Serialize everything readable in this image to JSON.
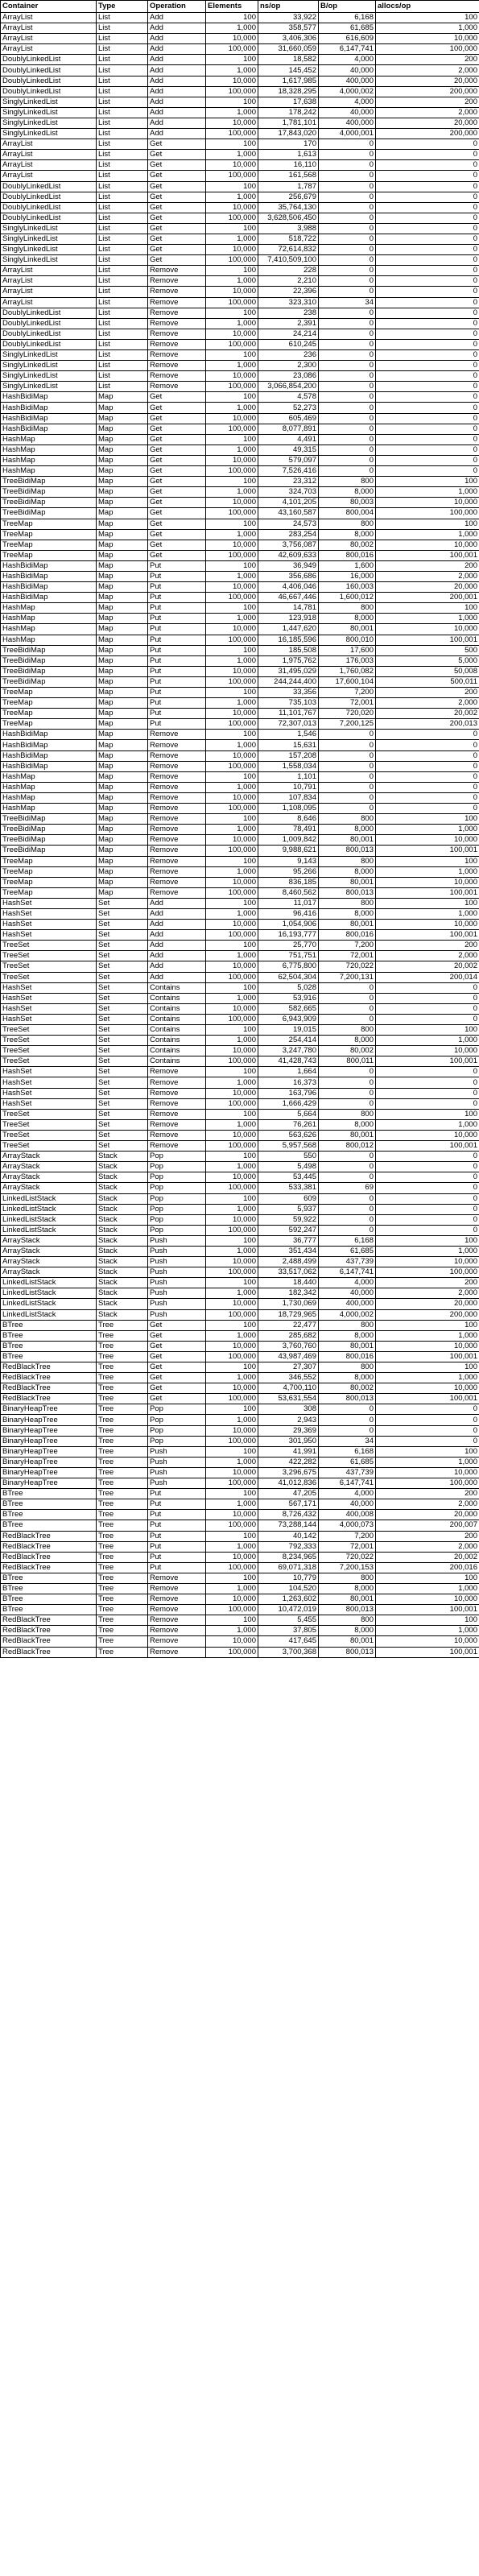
{
  "headers": [
    "Container",
    "Type",
    "Operation",
    "Elements",
    "ns/op",
    "B/op",
    "allocs/op"
  ],
  "rows": [
    [
      "ArrayList",
      "List",
      "Add",
      "100",
      "33,922",
      "6,168",
      "100"
    ],
    [
      "ArrayList",
      "List",
      "Add",
      "1,000",
      "358,577",
      "61,685",
      "1,000"
    ],
    [
      "ArrayList",
      "List",
      "Add",
      "10,000",
      "3,406,306",
      "616,609",
      "10,000"
    ],
    [
      "ArrayList",
      "List",
      "Add",
      "100,000",
      "31,660,059",
      "6,147,741",
      "100,000"
    ],
    [
      "DoublyLinkedList",
      "List",
      "Add",
      "100",
      "18,582",
      "4,000",
      "200"
    ],
    [
      "DoublyLinkedList",
      "List",
      "Add",
      "1,000",
      "145,452",
      "40,000",
      "2,000"
    ],
    [
      "DoublyLinkedList",
      "List",
      "Add",
      "10,000",
      "1,617,985",
      "400,000",
      "20,000"
    ],
    [
      "DoublyLinkedList",
      "List",
      "Add",
      "100,000",
      "18,328,295",
      "4,000,002",
      "200,000"
    ],
    [
      "SinglyLinkedList",
      "List",
      "Add",
      "100",
      "17,638",
      "4,000",
      "200"
    ],
    [
      "SinglyLinkedList",
      "List",
      "Add",
      "1,000",
      "178,242",
      "40,000",
      "2,000"
    ],
    [
      "SinglyLinkedList",
      "List",
      "Add",
      "10,000",
      "1,781,101",
      "400,000",
      "20,000"
    ],
    [
      "SinglyLinkedList",
      "List",
      "Add",
      "100,000",
      "17,843,020",
      "4,000,001",
      "200,000"
    ],
    [
      "ArrayList",
      "List",
      "Get",
      "100",
      "170",
      "0",
      "0"
    ],
    [
      "ArrayList",
      "List",
      "Get",
      "1,000",
      "1,613",
      "0",
      "0"
    ],
    [
      "ArrayList",
      "List",
      "Get",
      "10,000",
      "16,110",
      "0",
      "0"
    ],
    [
      "ArrayList",
      "List",
      "Get",
      "100,000",
      "161,568",
      "0",
      "0"
    ],
    [
      "DoublyLinkedList",
      "List",
      "Get",
      "100",
      "1,787",
      "0",
      "0"
    ],
    [
      "DoublyLinkedList",
      "List",
      "Get",
      "1,000",
      "256,679",
      "0",
      "0"
    ],
    [
      "DoublyLinkedList",
      "List",
      "Get",
      "10,000",
      "35,764,130",
      "0",
      "0"
    ],
    [
      "DoublyLinkedList",
      "List",
      "Get",
      "100,000",
      "3,628,506,450",
      "0",
      "0"
    ],
    [
      "SinglyLinkedList",
      "List",
      "Get",
      "100",
      "3,988",
      "0",
      "0"
    ],
    [
      "SinglyLinkedList",
      "List",
      "Get",
      "1,000",
      "518,722",
      "0",
      "0"
    ],
    [
      "SinglyLinkedList",
      "List",
      "Get",
      "10,000",
      "72,614,832",
      "0",
      "0"
    ],
    [
      "SinglyLinkedList",
      "List",
      "Get",
      "100,000",
      "7,410,509,100",
      "0",
      "0"
    ],
    [
      "ArrayList",
      "List",
      "Remove",
      "100",
      "228",
      "0",
      "0"
    ],
    [
      "ArrayList",
      "List",
      "Remove",
      "1,000",
      "2,210",
      "0",
      "0"
    ],
    [
      "ArrayList",
      "List",
      "Remove",
      "10,000",
      "22,396",
      "0",
      "0"
    ],
    [
      "ArrayList",
      "List",
      "Remove",
      "100,000",
      "323,310",
      "34",
      "0"
    ],
    [
      "DoublyLinkedList",
      "List",
      "Remove",
      "100",
      "238",
      "0",
      "0"
    ],
    [
      "DoublyLinkedList",
      "List",
      "Remove",
      "1,000",
      "2,391",
      "0",
      "0"
    ],
    [
      "DoublyLinkedList",
      "List",
      "Remove",
      "10,000",
      "24,214",
      "0",
      "0"
    ],
    [
      "DoublyLinkedList",
      "List",
      "Remove",
      "100,000",
      "610,245",
      "0",
      "0"
    ],
    [
      "SinglyLinkedList",
      "List",
      "Remove",
      "100",
      "236",
      "0",
      "0"
    ],
    [
      "SinglyLinkedList",
      "List",
      "Remove",
      "1,000",
      "2,300",
      "0",
      "0"
    ],
    [
      "SinglyLinkedList",
      "List",
      "Remove",
      "10,000",
      "23,086",
      "0",
      "0"
    ],
    [
      "SinglyLinkedList",
      "List",
      "Remove",
      "100,000",
      "3,066,854,200",
      "0",
      "0"
    ],
    [
      "HashBidiMap",
      "Map",
      "Get",
      "100",
      "4,578",
      "0",
      "0"
    ],
    [
      "HashBidiMap",
      "Map",
      "Get",
      "1,000",
      "52,273",
      "0",
      "0"
    ],
    [
      "HashBidiMap",
      "Map",
      "Get",
      "10,000",
      "605,469",
      "0",
      "0"
    ],
    [
      "HashBidiMap",
      "Map",
      "Get",
      "100,000",
      "8,077,891",
      "0",
      "0"
    ],
    [
      "HashMap",
      "Map",
      "Get",
      "100",
      "4,491",
      "0",
      "0"
    ],
    [
      "HashMap",
      "Map",
      "Get",
      "1,000",
      "49,315",
      "0",
      "0"
    ],
    [
      "HashMap",
      "Map",
      "Get",
      "10,000",
      "579,097",
      "0",
      "0"
    ],
    [
      "HashMap",
      "Map",
      "Get",
      "100,000",
      "7,526,416",
      "0",
      "0"
    ],
    [
      "TreeBidiMap",
      "Map",
      "Get",
      "100",
      "23,312",
      "800",
      "100"
    ],
    [
      "TreeBidiMap",
      "Map",
      "Get",
      "1,000",
      "324,703",
      "8,000",
      "1,000"
    ],
    [
      "TreeBidiMap",
      "Map",
      "Get",
      "10,000",
      "4,101,205",
      "80,003",
      "10,000"
    ],
    [
      "TreeBidiMap",
      "Map",
      "Get",
      "100,000",
      "43,160,587",
      "800,004",
      "100,000"
    ],
    [
      "TreeMap",
      "Map",
      "Get",
      "100",
      "24,573",
      "800",
      "100"
    ],
    [
      "TreeMap",
      "Map",
      "Get",
      "1,000",
      "283,254",
      "8,000",
      "1,000"
    ],
    [
      "TreeMap",
      "Map",
      "Get",
      "10,000",
      "3,756,087",
      "80,002",
      "10,000"
    ],
    [
      "TreeMap",
      "Map",
      "Get",
      "100,000",
      "42,609,633",
      "800,016",
      "100,001"
    ],
    [
      "HashBidiMap",
      "Map",
      "Put",
      "100",
      "36,949",
      "1,600",
      "200"
    ],
    [
      "HashBidiMap",
      "Map",
      "Put",
      "1,000",
      "356,686",
      "16,000",
      "2,000"
    ],
    [
      "HashBidiMap",
      "Map",
      "Put",
      "10,000",
      "4,406,046",
      "160,003",
      "20,000"
    ],
    [
      "HashBidiMap",
      "Map",
      "Put",
      "100,000",
      "46,667,446",
      "1,600,012",
      "200,001"
    ],
    [
      "HashMap",
      "Map",
      "Put",
      "100",
      "14,781",
      "800",
      "100"
    ],
    [
      "HashMap",
      "Map",
      "Put",
      "1,000",
      "123,918",
      "8,000",
      "1,000"
    ],
    [
      "HashMap",
      "Map",
      "Put",
      "10,000",
      "1,447,620",
      "80,001",
      "10,000"
    ],
    [
      "HashMap",
      "Map",
      "Put",
      "100,000",
      "16,185,596",
      "800,010",
      "100,001"
    ],
    [
      "TreeBidiMap",
      "Map",
      "Put",
      "100",
      "185,508",
      "17,600",
      "500"
    ],
    [
      "TreeBidiMap",
      "Map",
      "Put",
      "1,000",
      "1,975,762",
      "176,003",
      "5,000"
    ],
    [
      "TreeBidiMap",
      "Map",
      "Put",
      "10,000",
      "31,495,029",
      "1,760,082",
      "50,008"
    ],
    [
      "TreeBidiMap",
      "Map",
      "Put",
      "100,000",
      "244,244,400",
      "17,600,104",
      "500,011"
    ],
    [
      "TreeMap",
      "Map",
      "Put",
      "100",
      "33,356",
      "7,200",
      "200"
    ],
    [
      "TreeMap",
      "Map",
      "Put",
      "1,000",
      "735,103",
      "72,001",
      "2,000"
    ],
    [
      "TreeMap",
      "Map",
      "Put",
      "10,000",
      "11,101,767",
      "720,020",
      "20,002"
    ],
    [
      "TreeMap",
      "Map",
      "Put",
      "100,000",
      "72,307,013",
      "7,200,125",
      "200,013"
    ],
    [
      "HashBidiMap",
      "Map",
      "Remove",
      "100",
      "1,546",
      "0",
      "0"
    ],
    [
      "HashBidiMap",
      "Map",
      "Remove",
      "1,000",
      "15,631",
      "0",
      "0"
    ],
    [
      "HashBidiMap",
      "Map",
      "Remove",
      "10,000",
      "157,208",
      "0",
      "0"
    ],
    [
      "HashBidiMap",
      "Map",
      "Remove",
      "100,000",
      "1,558,034",
      "0",
      "0"
    ],
    [
      "HashMap",
      "Map",
      "Remove",
      "100",
      "1,101",
      "0",
      "0"
    ],
    [
      "HashMap",
      "Map",
      "Remove",
      "1,000",
      "10,791",
      "0",
      "0"
    ],
    [
      "HashMap",
      "Map",
      "Remove",
      "10,000",
      "107,834",
      "0",
      "0"
    ],
    [
      "HashMap",
      "Map",
      "Remove",
      "100,000",
      "1,108,095",
      "0",
      "0"
    ],
    [
      "TreeBidiMap",
      "Map",
      "Remove",
      "100",
      "8,646",
      "800",
      "100"
    ],
    [
      "TreeBidiMap",
      "Map",
      "Remove",
      "1,000",
      "78,491",
      "8,000",
      "1,000"
    ],
    [
      "TreeBidiMap",
      "Map",
      "Remove",
      "10,000",
      "1,009,842",
      "80,001",
      "10,000"
    ],
    [
      "TreeBidiMap",
      "Map",
      "Remove",
      "100,000",
      "9,988,621",
      "800,013",
      "100,001"
    ],
    [
      "TreeMap",
      "Map",
      "Remove",
      "100",
      "9,143",
      "800",
      "100"
    ],
    [
      "TreeMap",
      "Map",
      "Remove",
      "1,000",
      "95,266",
      "8,000",
      "1,000"
    ],
    [
      "TreeMap",
      "Map",
      "Remove",
      "10,000",
      "836,185",
      "80,001",
      "10,000"
    ],
    [
      "TreeMap",
      "Map",
      "Remove",
      "100,000",
      "8,460,562",
      "800,013",
      "100,001"
    ],
    [
      "HashSet",
      "Set",
      "Add",
      "100",
      "11,017",
      "800",
      "100"
    ],
    [
      "HashSet",
      "Set",
      "Add",
      "1,000",
      "96,416",
      "8,000",
      "1,000"
    ],
    [
      "HashSet",
      "Set",
      "Add",
      "10,000",
      "1,054,906",
      "80,001",
      "10,000"
    ],
    [
      "HashSet",
      "Set",
      "Add",
      "100,000",
      "16,193,777",
      "800,016",
      "100,001"
    ],
    [
      "TreeSet",
      "Set",
      "Add",
      "100",
      "25,770",
      "7,200",
      "200"
    ],
    [
      "TreeSet",
      "Set",
      "Add",
      "1,000",
      "751,751",
      "72,001",
      "2,000"
    ],
    [
      "TreeSet",
      "Set",
      "Add",
      "10,000",
      "6,775,800",
      "720,022",
      "20,002"
    ],
    [
      "TreeSet",
      "Set",
      "Add",
      "100,000",
      "62,504,304",
      "7,200,131",
      "200,014"
    ],
    [
      "HashSet",
      "Set",
      "Contains",
      "100",
      "5,028",
      "0",
      "0"
    ],
    [
      "HashSet",
      "Set",
      "Contains",
      "1,000",
      "53,916",
      "0",
      "0"
    ],
    [
      "HashSet",
      "Set",
      "Contains",
      "10,000",
      "582,665",
      "0",
      "0"
    ],
    [
      "HashSet",
      "Set",
      "Contains",
      "100,000",
      "6,943,909",
      "0",
      "0"
    ],
    [
      "TreeSet",
      "Set",
      "Contains",
      "100",
      "19,015",
      "800",
      "100"
    ],
    [
      "TreeSet",
      "Set",
      "Contains",
      "1,000",
      "254,414",
      "8,000",
      "1,000"
    ],
    [
      "TreeSet",
      "Set",
      "Contains",
      "10,000",
      "3,247,780",
      "80,002",
      "10,000"
    ],
    [
      "TreeSet",
      "Set",
      "Contains",
      "100,000",
      "41,428,743",
      "800,011",
      "100,001"
    ],
    [
      "HashSet",
      "Set",
      "Remove",
      "100",
      "1,664",
      "0",
      "0"
    ],
    [
      "HashSet",
      "Set",
      "Remove",
      "1,000",
      "16,373",
      "0",
      "0"
    ],
    [
      "HashSet",
      "Set",
      "Remove",
      "10,000",
      "163,796",
      "0",
      "0"
    ],
    [
      "HashSet",
      "Set",
      "Remove",
      "100,000",
      "1,666,429",
      "0",
      "0"
    ],
    [
      "TreeSet",
      "Set",
      "Remove",
      "100",
      "5,664",
      "800",
      "100"
    ],
    [
      "TreeSet",
      "Set",
      "Remove",
      "1,000",
      "76,261",
      "8,000",
      "1,000"
    ],
    [
      "TreeSet",
      "Set",
      "Remove",
      "10,000",
      "563,626",
      "80,001",
      "10,000"
    ],
    [
      "TreeSet",
      "Set",
      "Remove",
      "100,000",
      "5,957,568",
      "800,012",
      "100,001"
    ],
    [
      "ArrayStack",
      "Stack",
      "Pop",
      "100",
      "550",
      "0",
      "0"
    ],
    [
      "ArrayStack",
      "Stack",
      "Pop",
      "1,000",
      "5,498",
      "0",
      "0"
    ],
    [
      "ArrayStack",
      "Stack",
      "Pop",
      "10,000",
      "53,445",
      "0",
      "0"
    ],
    [
      "ArrayStack",
      "Stack",
      "Pop",
      "100,000",
      "533,381",
      "69",
      "0"
    ],
    [
      "LinkedListStack",
      "Stack",
      "Pop",
      "100",
      "609",
      "0",
      "0"
    ],
    [
      "LinkedListStack",
      "Stack",
      "Pop",
      "1,000",
      "5,937",
      "0",
      "0"
    ],
    [
      "LinkedListStack",
      "Stack",
      "Pop",
      "10,000",
      "59,922",
      "0",
      "0"
    ],
    [
      "LinkedListStack",
      "Stack",
      "Pop",
      "100,000",
      "592,247",
      "0",
      "0"
    ],
    [
      "ArrayStack",
      "Stack",
      "Push",
      "100",
      "36,777",
      "6,168",
      "100"
    ],
    [
      "ArrayStack",
      "Stack",
      "Push",
      "1,000",
      "351,434",
      "61,685",
      "1,000"
    ],
    [
      "ArrayStack",
      "Stack",
      "Push",
      "10,000",
      "2,488,499",
      "437,739",
      "10,000"
    ],
    [
      "ArrayStack",
      "Stack",
      "Push",
      "100,000",
      "33,517,062",
      "6,147,741",
      "100,000"
    ],
    [
      "LinkedListStack",
      "Stack",
      "Push",
      "100",
      "18,440",
      "4,000",
      "200"
    ],
    [
      "LinkedListStack",
      "Stack",
      "Push",
      "1,000",
      "182,342",
      "40,000",
      "2,000"
    ],
    [
      "LinkedListStack",
      "Stack",
      "Push",
      "10,000",
      "1,730,069",
      "400,000",
      "20,000"
    ],
    [
      "LinkedListStack",
      "Stack",
      "Push",
      "100,000",
      "18,729,965",
      "4,000,002",
      "200,000"
    ],
    [
      "BTree",
      "Tree",
      "Get",
      "100",
      "22,477",
      "800",
      "100"
    ],
    [
      "BTree",
      "Tree",
      "Get",
      "1,000",
      "285,682",
      "8,000",
      "1,000"
    ],
    [
      "BTree",
      "Tree",
      "Get",
      "10,000",
      "3,760,760",
      "80,001",
      "10,000"
    ],
    [
      "BTree",
      "Tree",
      "Get",
      "100,000",
      "43,987,469",
      "800,016",
      "100,001"
    ],
    [
      "RedBlackTree",
      "Tree",
      "Get",
      "100",
      "27,307",
      "800",
      "100"
    ],
    [
      "RedBlackTree",
      "Tree",
      "Get",
      "1,000",
      "346,552",
      "8,000",
      "1,000"
    ],
    [
      "RedBlackTree",
      "Tree",
      "Get",
      "10,000",
      "4,700,110",
      "80,002",
      "10,000"
    ],
    [
      "RedBlackTree",
      "Tree",
      "Get",
      "100,000",
      "53,631,554",
      "800,013",
      "100,001"
    ],
    [
      "BinaryHeapTree",
      "Tree",
      "Pop",
      "100",
      "308",
      "0",
      "0"
    ],
    [
      "BinaryHeapTree",
      "Tree",
      "Pop",
      "1,000",
      "2,943",
      "0",
      "0"
    ],
    [
      "BinaryHeapTree",
      "Tree",
      "Pop",
      "10,000",
      "29,369",
      "0",
      "0"
    ],
    [
      "BinaryHeapTree",
      "Tree",
      "Pop",
      "100,000",
      "301,950",
      "34",
      "0"
    ],
    [
      "BinaryHeapTree",
      "Tree",
      "Push",
      "100",
      "41,991",
      "6,168",
      "100"
    ],
    [
      "BinaryHeapTree",
      "Tree",
      "Push",
      "1,000",
      "422,282",
      "61,685",
      "1,000"
    ],
    [
      "BinaryHeapTree",
      "Tree",
      "Push",
      "10,000",
      "3,296,675",
      "437,739",
      "10,000"
    ],
    [
      "BinaryHeapTree",
      "Tree",
      "Push",
      "100,000",
      "41,012,836",
      "6,147,741",
      "100,000"
    ],
    [
      "BTree",
      "Tree",
      "Put",
      "100",
      "47,205",
      "4,000",
      "200"
    ],
    [
      "BTree",
      "Tree",
      "Put",
      "1,000",
      "567,171",
      "40,000",
      "2,000"
    ],
    [
      "BTree",
      "Tree",
      "Put",
      "10,000",
      "8,726,432",
      "400,008",
      "20,000"
    ],
    [
      "BTree",
      "Tree",
      "Put",
      "100,000",
      "73,288,144",
      "4,000,073",
      "200,007"
    ],
    [
      "RedBlackTree",
      "Tree",
      "Put",
      "100",
      "40,142",
      "7,200",
      "200"
    ],
    [
      "RedBlackTree",
      "Tree",
      "Put",
      "1,000",
      "792,333",
      "72,001",
      "2,000"
    ],
    [
      "RedBlackTree",
      "Tree",
      "Put",
      "10,000",
      "8,234,965",
      "720,022",
      "20,002"
    ],
    [
      "RedBlackTree",
      "Tree",
      "Put",
      "100,000",
      "69,071,318",
      "7,200,153",
      "200,016"
    ],
    [
      "BTree",
      "Tree",
      "Remove",
      "100",
      "10,779",
      "800",
      "100"
    ],
    [
      "BTree",
      "Tree",
      "Remove",
      "1,000",
      "104,520",
      "8,000",
      "1,000"
    ],
    [
      "BTree",
      "Tree",
      "Remove",
      "10,000",
      "1,263,602",
      "80,001",
      "10,000"
    ],
    [
      "BTree",
      "Tree",
      "Remove",
      "100,000",
      "10,472,019",
      "800,013",
      "100,001"
    ],
    [
      "RedBlackTree",
      "Tree",
      "Remove",
      "100",
      "5,455",
      "800",
      "100"
    ],
    [
      "RedBlackTree",
      "Tree",
      "Remove",
      "1,000",
      "37,805",
      "8,000",
      "1,000"
    ],
    [
      "RedBlackTree",
      "Tree",
      "Remove",
      "10,000",
      "417,645",
      "80,001",
      "10,000"
    ],
    [
      "RedBlackTree",
      "Tree",
      "Remove",
      "100,000",
      "3,700,368",
      "800,013",
      "100,001"
    ]
  ]
}
